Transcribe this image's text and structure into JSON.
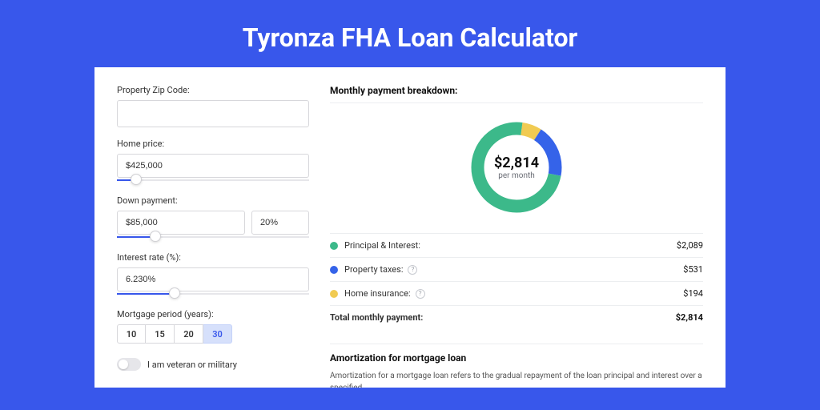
{
  "page": {
    "title": "Tyronza FHA Loan Calculator"
  },
  "colors": {
    "brand": "#3857eb",
    "green": "#3cb98a",
    "blue": "#3563e9",
    "yellow": "#f1cb52",
    "track": "#e6e6ea"
  },
  "form": {
    "zip": {
      "label": "Property Zip Code:",
      "value": ""
    },
    "home_price": {
      "label": "Home price:",
      "value": "$425,000",
      "slider_pct": 10
    },
    "down_payment": {
      "label": "Down payment:",
      "value": "$85,000",
      "pct": "20%",
      "slider_pct": 20
    },
    "interest": {
      "label": "Interest rate (%):",
      "value": "6.230%",
      "slider_pct": 30
    },
    "period": {
      "label": "Mortgage period (years):",
      "options": [
        "10",
        "15",
        "20",
        "30"
      ],
      "selected": 3
    },
    "veteran": {
      "label": "I am veteran or military",
      "on": false
    }
  },
  "breakdown": {
    "title": "Monthly payment breakdown:",
    "donut": {
      "value": "$2,814",
      "sub": "per month",
      "segments": [
        {
          "pct": 7,
          "color": "#f1cb52"
        },
        {
          "pct": 19,
          "color": "#3563e9"
        },
        {
          "pct": 74,
          "color": "#3cb98a"
        }
      ],
      "stroke_width": 16
    },
    "items": [
      {
        "label": "Principal & Interest:",
        "amount": "$2,089",
        "color": "#3cb98a",
        "help": false
      },
      {
        "label": "Property taxes:",
        "amount": "$531",
        "color": "#3563e9",
        "help": true
      },
      {
        "label": "Home insurance:",
        "amount": "$194",
        "color": "#f1cb52",
        "help": true
      }
    ],
    "total": {
      "label": "Total monthly payment:",
      "amount": "$2,814"
    }
  },
  "amortization": {
    "title": "Amortization for mortgage loan",
    "text": "Amortization for a mortgage loan refers to the gradual repayment of the loan principal and interest over a specified"
  }
}
